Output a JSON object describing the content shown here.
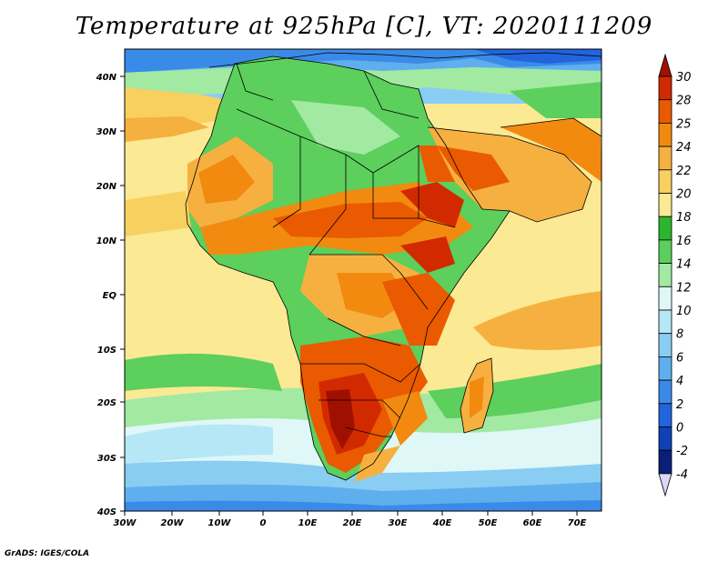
{
  "title": "Temperature at 925hPa [C], VT: 2020111209",
  "credit": "GrADS: IGES/COLA",
  "map": {
    "lon_ticks": [
      "30W",
      "20W",
      "10W",
      "0",
      "10E",
      "20E",
      "30E",
      "40E",
      "50E",
      "60E",
      "70E"
    ],
    "lat_ticks": [
      "40N",
      "30N",
      "20N",
      "10N",
      "EQ",
      "10S",
      "20S",
      "30S",
      "40S"
    ]
  },
  "colorbar": {
    "labels": [
      "30",
      "28",
      "25",
      "24",
      "22",
      "20",
      "18",
      "16",
      "14",
      "12",
      "10",
      "8",
      "6",
      "4",
      "2",
      "0",
      "-2",
      "-4"
    ],
    "colors": [
      "#a01000",
      "#d22a00",
      "#ea5a00",
      "#f28a10",
      "#f6b040",
      "#f8d060",
      "#fbe994",
      "#2db62d",
      "#5ccf5c",
      "#a2e9a2",
      "#dff7f7",
      "#b5e7f7",
      "#8acdf3",
      "#5fafee",
      "#3a8ae8",
      "#2164dd",
      "#1040b8",
      "#0a1f7a",
      "#d8d8f8"
    ]
  },
  "colors": {
    "ocean": "#fbe994",
    "land_outline": "#000000"
  }
}
